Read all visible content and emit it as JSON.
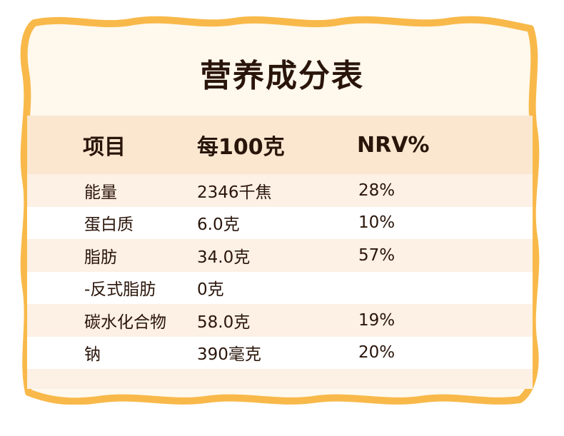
{
  "title": "营养成分表",
  "header": {
    "col1": "项目",
    "col2": "每100克",
    "col3": "NRV%"
  },
  "rows": [
    {
      "item": "能量",
      "amount": "2346千焦",
      "nrv": "28%"
    },
    {
      "item": "蛋白质",
      "amount": "6.0克",
      "nrv": "10%"
    },
    {
      "item": "脂肪",
      "amount": "34.0克",
      "nrv": "57%"
    },
    {
      "item": "-反式脂肪",
      "amount": "0克",
      "nrv": ""
    },
    {
      "item": "碳水化合物",
      "amount": "58.0克",
      "nrv": "19%"
    },
    {
      "item": "钠",
      "amount": "390毫克",
      "nrv": "20%"
    }
  ],
  "colors": {
    "frame_border": "#f8b94a",
    "panel_bg": "#fff8ec",
    "header_bg": "#fbe7d0",
    "text": "#2a150a"
  }
}
